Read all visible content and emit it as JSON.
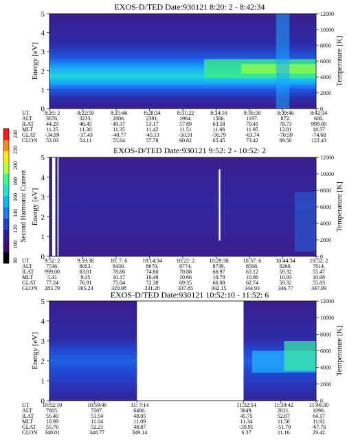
{
  "colorbar": {
    "label": "Second Harmonic Current",
    "ticks": [
      "240",
      "220",
      "200",
      "180",
      "160",
      "140",
      "120",
      "100",
      "80"
    ],
    "colors": [
      "#000000",
      "#3d0a6e",
      "#2a1aa0",
      "#1f3fd0",
      "#1a7cff",
      "#10b4ff",
      "#1fe4d2",
      "#3cff8c",
      "#b8ff3c",
      "#ffe81a",
      "#ff8a14",
      "#ff1a10"
    ]
  },
  "chart_data": [
    {
      "type": "heatmap",
      "title": "EXOS-D/TED   Date:930121   8:20: 2 - 8:42:34",
      "ylabel": "Energy [eV]",
      "y2label": "Temperature [K]",
      "ylim": [
        0,
        5
      ],
      "y2lim": [
        0,
        12000
      ],
      "yticks": [
        "0",
        "1",
        "2",
        "3",
        "4",
        "5"
      ],
      "y2ticks": [
        "0",
        "2000",
        "4000",
        "6000",
        "8000",
        "10000",
        "12000"
      ],
      "row_labels": [
        "UT",
        "ALT",
        "ILAT",
        "MLT",
        "GLAT",
        "GLON"
      ],
      "columns": [
        [
          "8:20: 2",
          "3676.",
          "44.29",
          "11.25",
          "-34.99",
          "53.03"
        ],
        [
          "8:22:58",
          "3233.",
          "46.45",
          "11.30",
          "-37.43",
          "54.11"
        ],
        [
          "8:25:46",
          "2806.",
          "49.37",
          "11.35",
          "-40.77",
          "55.64"
        ],
        [
          "8:28:34",
          "2381.",
          "53.17",
          "11.42",
          "-45.13",
          "57.78"
        ],
        [
          "8:31:22",
          "1964.",
          "57.89",
          "11.51",
          "-50.51",
          "60.82"
        ],
        [
          "8:34:10",
          "1566.",
          "63.58",
          "11.66",
          "-56.79",
          "65.45"
        ],
        [
          "8:36:58",
          "1197.",
          "70.41",
          "11.95",
          "-63.74",
          "73.42"
        ],
        [
          "8:39:46",
          "872.",
          "78.73",
          "12.81",
          "-70.59",
          "89.50"
        ],
        [
          "8:42:34",
          "606.",
          "999.00",
          "18.57",
          "-74.68",
          "122.43"
        ]
      ]
    },
    {
      "type": "heatmap",
      "title": "EXOS-D/TED   Date:930121   9:52: 2 - 10:52: 2",
      "ylabel": "Energy [eV]",
      "y2label": "Temperature [K]",
      "ylim": [
        0,
        5
      ],
      "y2lim": [
        0,
        12000
      ],
      "yticks": [
        "0",
        "1",
        "2",
        "3",
        "4",
        "5"
      ],
      "y2ticks": [
        "0",
        "2000",
        "4000",
        "6000",
        "8000",
        "10000",
        "12000"
      ],
      "row_labels": [
        "UT",
        "ALT",
        "ILAT",
        "MLT",
        "GLAT",
        "GLON"
      ],
      "columns": [
        [
          "9:52: 2",
          "7536.",
          "999.00",
          "5.41",
          "77.24",
          "283.79"
        ],
        [
          "9:59:38",
          "8053.",
          "83.01",
          "9.35",
          "76.91",
          "305.24"
        ],
        [
          "10: 7: 6",
          "8430.",
          "78.86",
          "10.17",
          "75.04",
          "320.98"
        ],
        [
          "10:14:34",
          "8670.",
          "74.80",
          "10.49",
          "72.38",
          "331.28"
        ],
        [
          "10:22: 2",
          "8774.",
          "70.88",
          "10.66",
          "69.35",
          "337.85"
        ],
        [
          "10:29:38",
          "8739.",
          "66.97",
          "10.78",
          "66.08",
          "342.15"
        ],
        [
          "10:37: 6",
          "8568.",
          "63.12",
          "10.86",
          "62.74",
          "344.93"
        ],
        [
          "10:44:34",
          "8260.",
          "59.32",
          "10.93",
          "59.32",
          "346.77"
        ],
        [
          "10:52: 2",
          "7814.",
          "55.47",
          "10.98",
          "55.83",
          "347.99"
        ]
      ]
    },
    {
      "type": "heatmap",
      "title": "EXOS-D/TED   Date:930121   10:52:10 - 11:52: 6",
      "ylabel": "Energy [eV]",
      "y2label": "Temperature [K]",
      "ylim": [
        0,
        5
      ],
      "y2lim": [
        0,
        12000
      ],
      "yticks": [
        "0",
        "1",
        "2",
        "3",
        "4",
        "5"
      ],
      "y2ticks": [
        "0",
        "2000",
        "4000",
        "6000",
        "8000",
        "10000",
        "12000"
      ],
      "row_labels": [
        "UT",
        "ALT",
        "ILAT",
        "MLT",
        "GLAT",
        "GLON"
      ],
      "columns": [
        [
          "10:52:10",
          "7805.",
          "55.40",
          "10.99",
          "55.76",
          "348.01"
        ],
        [
          "10:59:46",
          "7207.",
          "51.54",
          "11.04",
          "52.21",
          "348.77"
        ],
        [
          "11: 7:14",
          "6480.",
          "48.05",
          "11.09",
          "48.87",
          "349.14"
        ],
        [
          "11:32:54",
          "3049.",
          "45.75",
          "11.34",
          "-39.91",
          "6.37"
        ],
        [
          "11:39:42",
          "2021.",
          "52.67",
          "11.50",
          "-51.70",
          "11.16"
        ],
        [
          "11:46:30",
          "1098.",
          "64.17",
          "11.92",
          "-67.76",
          "29.42"
        ]
      ]
    }
  ]
}
